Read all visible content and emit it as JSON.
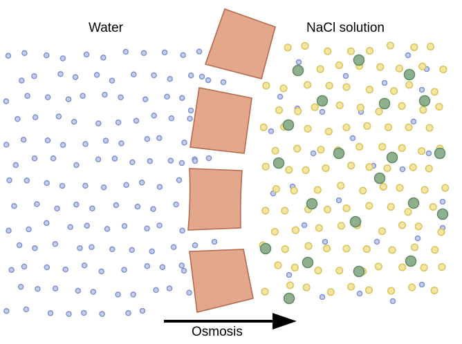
{
  "labels": {
    "left_side": "Water",
    "right_side": "NaCl solution",
    "arrow": "Osmosis"
  },
  "colors": {
    "water_molecule_fill": "#c4cfee",
    "water_molecule_stroke": "#7f90cf",
    "sodium_fill": "#f3e6a0",
    "sodium_stroke": "#d8c25a",
    "chloride_fill": "#8fb08f",
    "chloride_stroke": "#5f8a60",
    "membrane_fill": "#e3a88c",
    "membrane_stroke": "#b4684c",
    "arrow": "#000000"
  }
}
